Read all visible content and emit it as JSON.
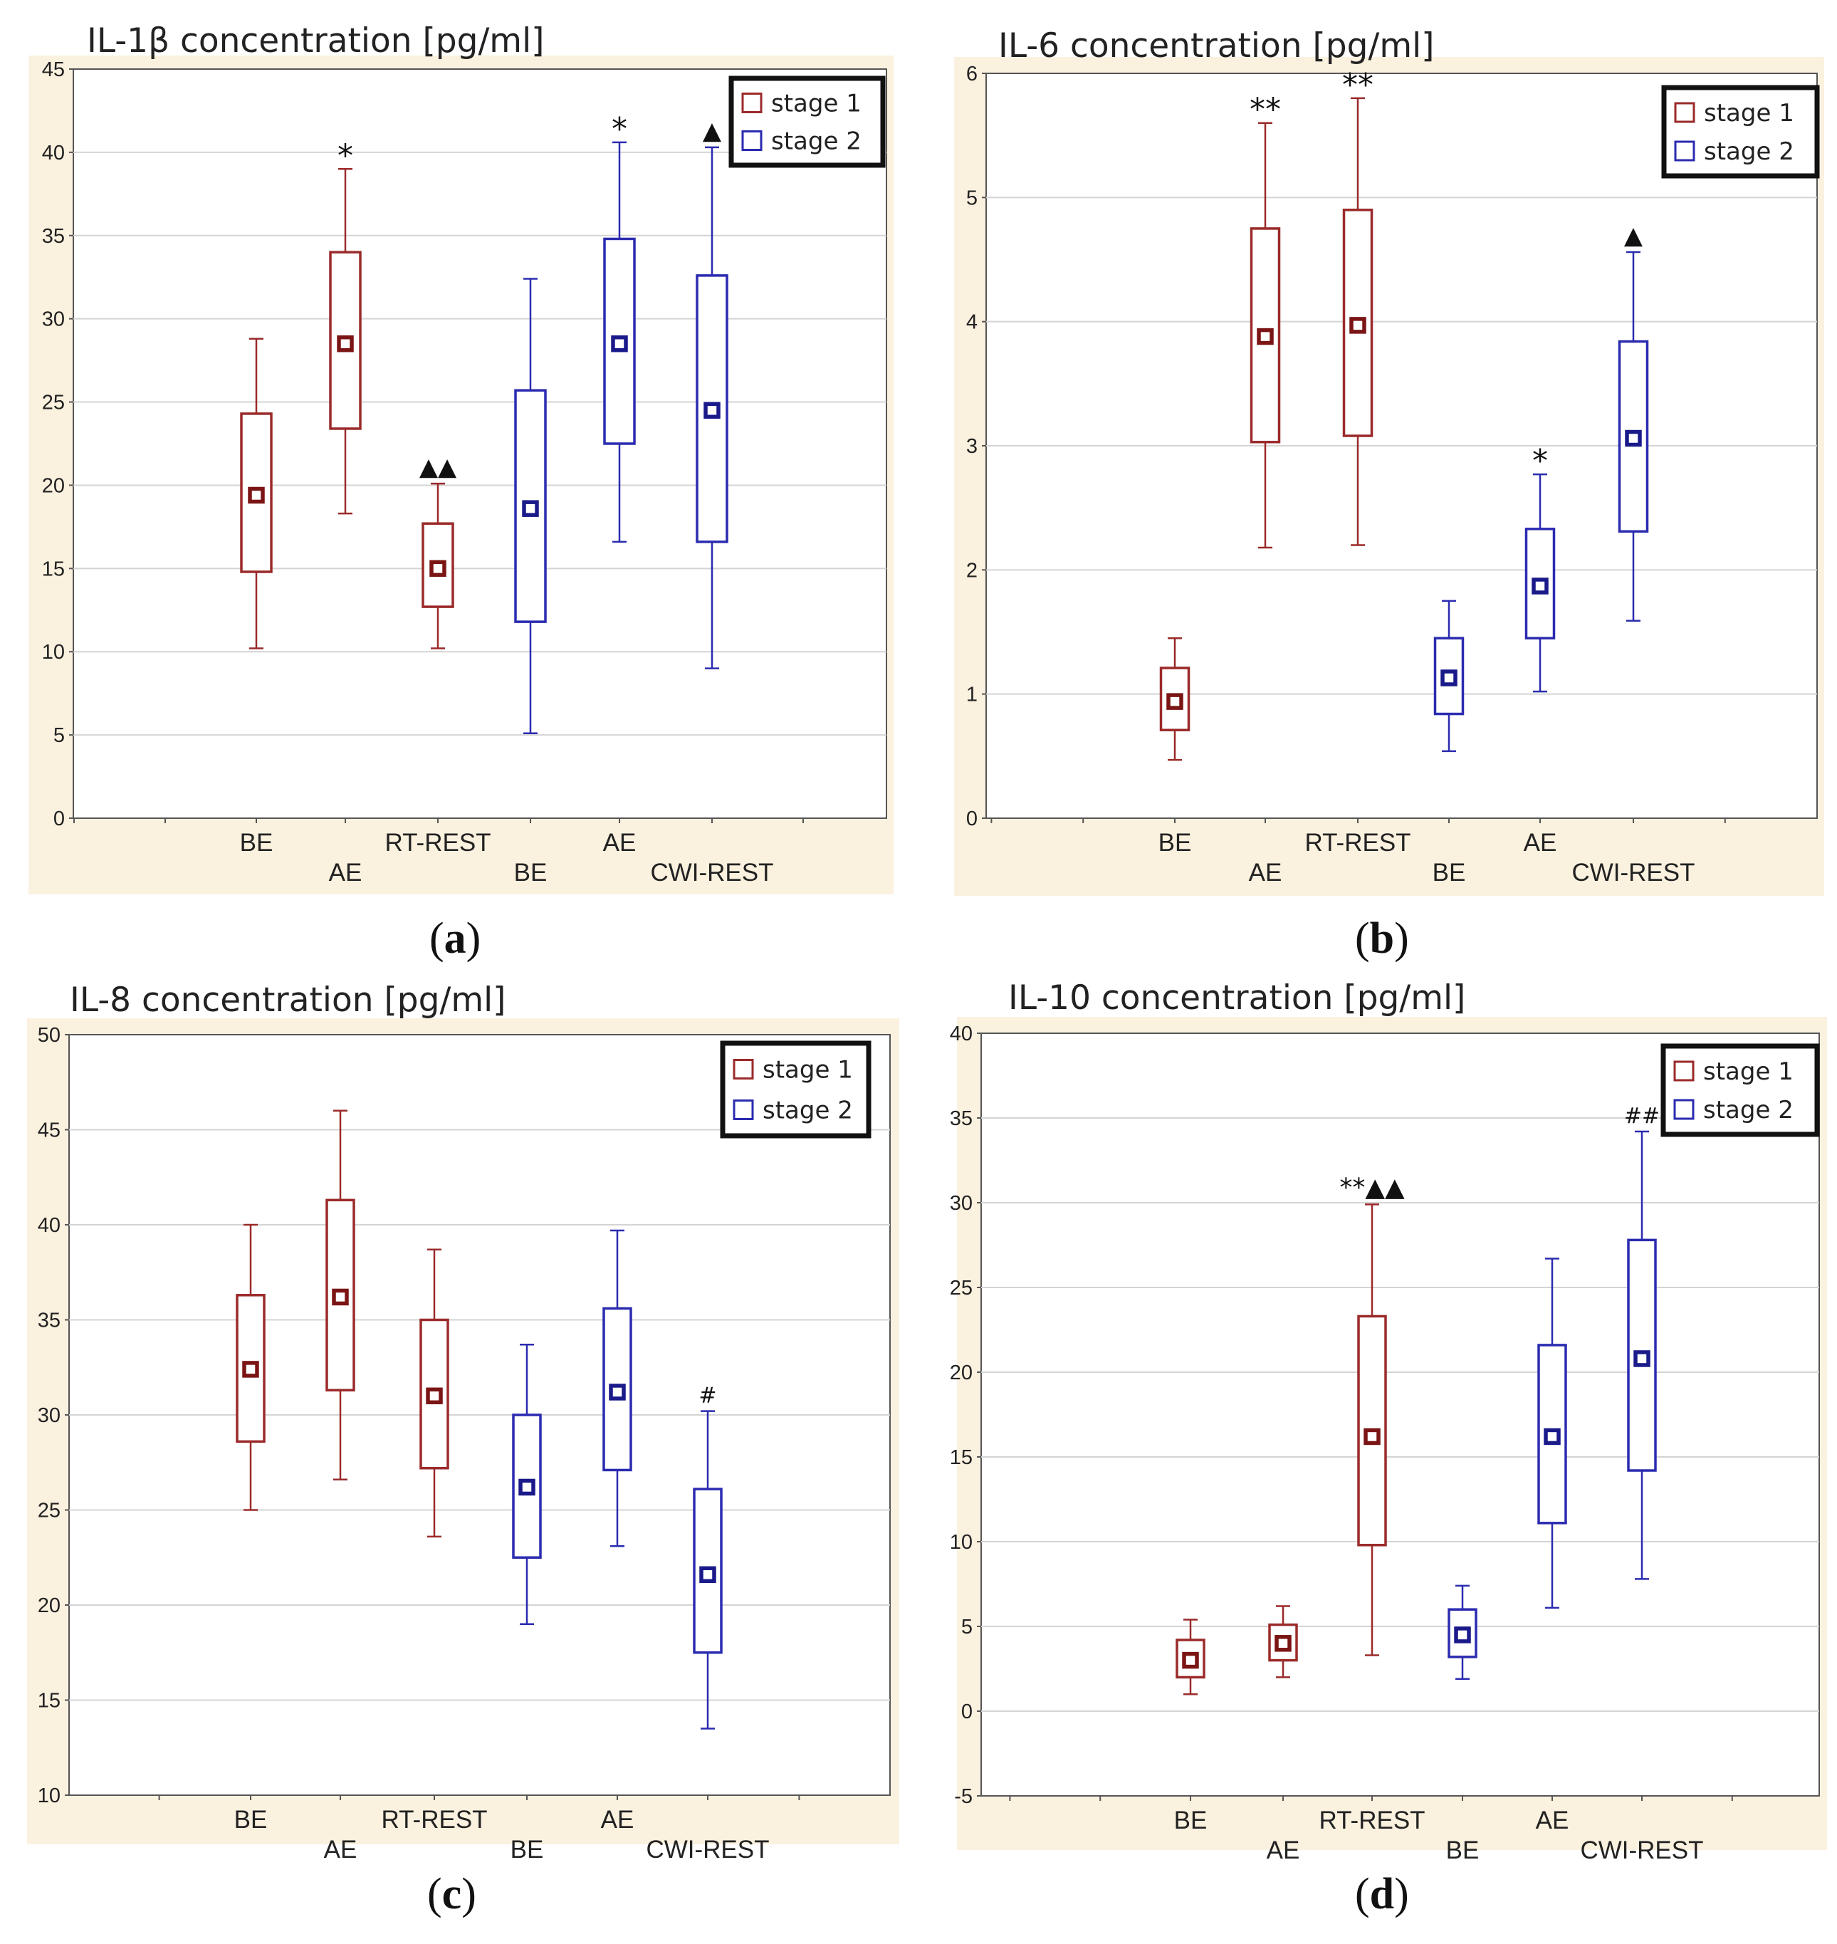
{
  "colors": {
    "stage1": "#9b2a2a",
    "stage2": "#2b2bb0",
    "band": "#fbf1df",
    "grid": "#d4d4d4",
    "mean_stage1": "#7b1515",
    "mean_stage2": "#1a1a8a"
  },
  "legend": {
    "stage1": "stage 1",
    "stage2": "stage 2"
  },
  "captions": [
    "a",
    "b",
    "c",
    "d"
  ],
  "chart_data": [
    {
      "type": "box",
      "title": "IL-1β concentration [pg/ml]",
      "ylim": [
        0,
        45
      ],
      "yticks": [
        0,
        5,
        10,
        15,
        20,
        25,
        30,
        35,
        40,
        45
      ],
      "categories": [
        "BE",
        "AE",
        "RT-REST",
        "BE",
        "AE",
        "CWI-REST"
      ],
      "boxes": [
        {
          "category": "BE",
          "series": "stage 1",
          "min": 10.2,
          "q1": 14.8,
          "mean": 19.4,
          "q3": 24.3,
          "max": 28.8,
          "marker": ""
        },
        {
          "category": "AE",
          "series": "stage 1",
          "min": 18.3,
          "q1": 23.4,
          "mean": 28.5,
          "q3": 34.0,
          "max": 39.0,
          "marker": "*"
        },
        {
          "category": "RT-REST",
          "series": "stage 1",
          "min": 10.2,
          "q1": 12.7,
          "mean": 15.0,
          "q3": 17.7,
          "max": 20.1,
          "marker": "▲▲"
        },
        {
          "category": "BE",
          "series": "stage 2",
          "min": 5.1,
          "q1": 11.8,
          "mean": 18.6,
          "q3": 25.7,
          "max": 32.4,
          "marker": ""
        },
        {
          "category": "AE",
          "series": "stage 2",
          "min": 16.6,
          "q1": 22.5,
          "mean": 28.5,
          "q3": 34.8,
          "max": 40.6,
          "marker": "*"
        },
        {
          "category": "CWI-REST",
          "series": "stage 2",
          "min": 9.0,
          "q1": 16.6,
          "mean": 24.5,
          "q3": 32.6,
          "max": 40.3,
          "marker": "▲"
        }
      ]
    },
    {
      "type": "box",
      "title": "IL-6 concentration [pg/ml]",
      "ylim": [
        0,
        6
      ],
      "yticks": [
        0,
        1,
        2,
        3,
        4,
        5,
        6
      ],
      "categories": [
        "BE",
        "AE",
        "RT-REST",
        "BE",
        "AE",
        "CWI-REST"
      ],
      "boxes": [
        {
          "category": "BE",
          "series": "stage 1",
          "min": 0.47,
          "q1": 0.71,
          "mean": 0.94,
          "q3": 1.21,
          "max": 1.45,
          "marker": ""
        },
        {
          "category": "AE",
          "series": "stage 1",
          "min": 2.18,
          "q1": 3.03,
          "mean": 3.88,
          "q3": 4.75,
          "max": 5.6,
          "marker": "**"
        },
        {
          "category": "RT-REST",
          "series": "stage 1",
          "min": 2.2,
          "q1": 3.08,
          "mean": 3.97,
          "q3": 4.9,
          "max": 5.8,
          "marker": "**"
        },
        {
          "category": "BE",
          "series": "stage 2",
          "min": 0.54,
          "q1": 0.84,
          "mean": 1.13,
          "q3": 1.45,
          "max": 1.75,
          "marker": ""
        },
        {
          "category": "AE",
          "series": "stage 2",
          "min": 1.02,
          "q1": 1.45,
          "mean": 1.87,
          "q3": 2.33,
          "max": 2.77,
          "marker": "*"
        },
        {
          "category": "CWI-REST",
          "series": "stage 2",
          "min": 1.59,
          "q1": 2.31,
          "mean": 3.06,
          "q3": 3.84,
          "max": 4.56,
          "marker": "▲"
        }
      ]
    },
    {
      "type": "box",
      "title": "IL-8 concentration [pg/ml]",
      "ylim": [
        10,
        50
      ],
      "yticks": [
        10,
        15,
        20,
        25,
        30,
        35,
        40,
        45,
        50
      ],
      "categories": [
        "BE",
        "AE",
        "RT-REST",
        "BE",
        "AE",
        "CWI-REST"
      ],
      "boxes": [
        {
          "category": "BE",
          "series": "stage 1",
          "min": 25.0,
          "q1": 28.6,
          "mean": 32.4,
          "q3": 36.3,
          "max": 40.0,
          "marker": ""
        },
        {
          "category": "AE",
          "series": "stage 1",
          "min": 26.6,
          "q1": 31.3,
          "mean": 36.2,
          "q3": 41.3,
          "max": 46.0,
          "marker": ""
        },
        {
          "category": "RT-REST",
          "series": "stage 1",
          "min": 23.6,
          "q1": 27.2,
          "mean": 31.0,
          "q3": 35.0,
          "max": 38.7,
          "marker": ""
        },
        {
          "category": "BE",
          "series": "stage 2",
          "min": 19.0,
          "q1": 22.5,
          "mean": 26.2,
          "q3": 30.0,
          "max": 33.7,
          "marker": ""
        },
        {
          "category": "AE",
          "series": "stage 2",
          "min": 23.1,
          "q1": 27.1,
          "mean": 31.2,
          "q3": 35.6,
          "max": 39.7,
          "marker": ""
        },
        {
          "category": "CWI-REST",
          "series": "stage 2",
          "min": 13.5,
          "q1": 17.5,
          "mean": 21.6,
          "q3": 26.1,
          "max": 30.2,
          "marker": "#"
        }
      ]
    },
    {
      "type": "box",
      "title": "IL-10 concentration [pg/ml]",
      "ylim": [
        -5,
        40
      ],
      "yticks": [
        -5,
        0,
        5,
        10,
        15,
        20,
        25,
        30,
        35,
        40
      ],
      "categories": [
        "BE",
        "AE",
        "RT-REST",
        "BE",
        "AE",
        "CWI-REST"
      ],
      "boxes": [
        {
          "category": "BE",
          "series": "stage 1",
          "min": 1.0,
          "q1": 2.0,
          "mean": 3.0,
          "q3": 4.2,
          "max": 5.4,
          "marker": ""
        },
        {
          "category": "AE",
          "series": "stage 1",
          "min": 2.0,
          "q1": 3.0,
          "mean": 4.0,
          "q3": 5.1,
          "max": 6.2,
          "marker": ""
        },
        {
          "category": "RT-REST",
          "series": "stage 1",
          "min": 3.3,
          "q1": 9.8,
          "mean": 16.2,
          "q3": 23.3,
          "max": 29.9,
          "marker": "**▲▲"
        },
        {
          "category": "BE",
          "series": "stage 2",
          "min": 1.9,
          "q1": 3.2,
          "mean": 4.5,
          "q3": 6.0,
          "max": 7.4,
          "marker": ""
        },
        {
          "category": "AE",
          "series": "stage 2",
          "min": 6.1,
          "q1": 11.1,
          "mean": 16.2,
          "q3": 21.6,
          "max": 26.7,
          "marker": ""
        },
        {
          "category": "CWI-REST",
          "series": "stage 2",
          "min": 7.8,
          "q1": 14.2,
          "mean": 20.8,
          "q3": 27.8,
          "max": 34.2,
          "marker": "##"
        }
      ]
    }
  ]
}
